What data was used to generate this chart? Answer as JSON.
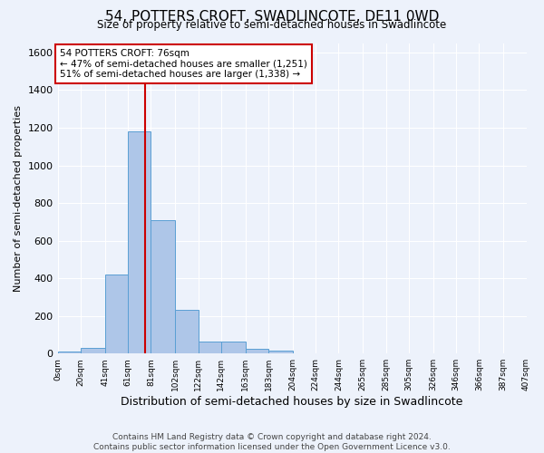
{
  "title": "54, POTTERS CROFT, SWADLINCOTE, DE11 0WD",
  "subtitle": "Size of property relative to semi-detached houses in Swadlincote",
  "xlabel": "Distribution of semi-detached houses by size in Swadlincote",
  "ylabel": "Number of semi-detached properties",
  "footer_line1": "Contains HM Land Registry data © Crown copyright and database right 2024.",
  "footer_line2": "Contains public sector information licensed under the Open Government Licence v3.0.",
  "bin_edges": [
    0,
    20,
    41,
    61,
    81,
    102,
    122,
    142,
    163,
    183,
    204,
    224,
    244,
    265,
    285,
    305,
    326,
    346,
    366,
    387,
    407
  ],
  "bin_labels": [
    "0sqm",
    "20sqm",
    "41sqm",
    "61sqm",
    "81sqm",
    "102sqm",
    "122sqm",
    "142sqm",
    "163sqm",
    "183sqm",
    "204sqm",
    "224sqm",
    "244sqm",
    "265sqm",
    "285sqm",
    "305sqm",
    "326sqm",
    "346sqm",
    "366sqm",
    "387sqm",
    "407sqm"
  ],
  "bar_heights": [
    10,
    30,
    420,
    1180,
    710,
    230,
    65,
    65,
    25,
    15,
    0,
    0,
    0,
    0,
    0,
    0,
    0,
    0,
    0,
    0
  ],
  "bar_color": "#aec6e8",
  "bar_edge_color": "#5a9fd4",
  "background_color": "#edf2fb",
  "grid_color": "#ffffff",
  "annotation_line1": "54 POTTERS CROFT: 76sqm",
  "annotation_line2": "← 47% of semi-detached houses are smaller (1,251)",
  "annotation_line3": "51% of semi-detached houses are larger (1,338) →",
  "property_size_sqm": 76,
  "red_line_color": "#cc0000",
  "annotation_box_color": "#ffffff",
  "annotation_box_edge_color": "#cc0000",
  "ylim": [
    0,
    1650
  ],
  "yticks": [
    0,
    200,
    400,
    600,
    800,
    1000,
    1200,
    1400,
    1600
  ]
}
